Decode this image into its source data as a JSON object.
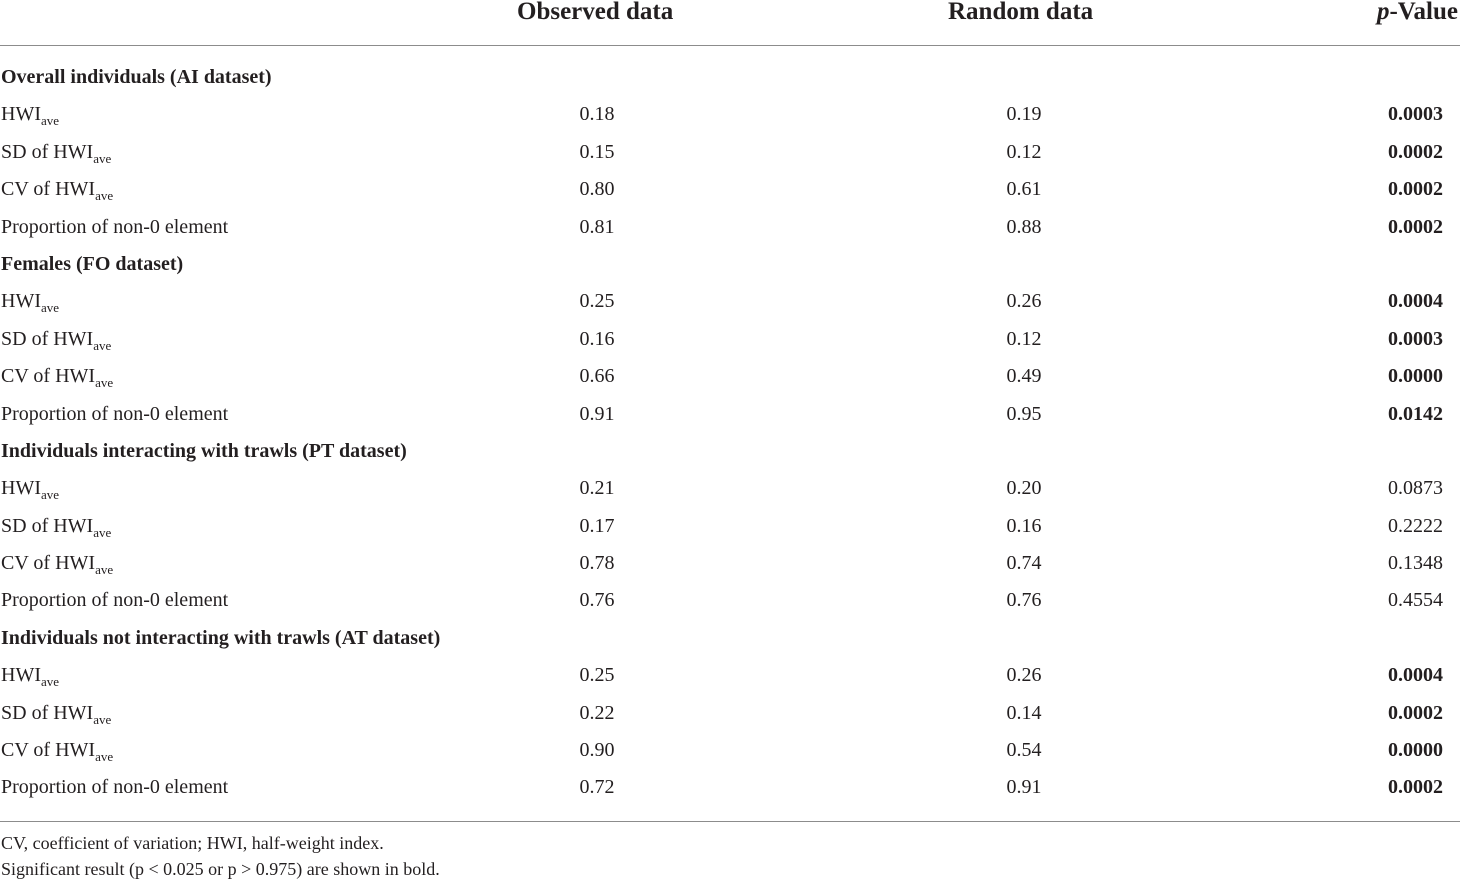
{
  "table": {
    "headers": {
      "observed": "Observed data",
      "random": "Random data",
      "pvalue_italic": "p",
      "pvalue_rest": "-Value"
    },
    "sections": [
      {
        "title": "Overall individuals (AI dataset)",
        "rows": [
          {
            "label_pre": "HWI",
            "label_sub": "ave",
            "observed": "0.18",
            "random": "0.19",
            "p_value": "0.0003",
            "bold": true
          },
          {
            "label_pre": "SD of HWI",
            "label_sub": "ave",
            "observed": "0.15",
            "random": "0.12",
            "p_value": "0.0002",
            "bold": true
          },
          {
            "label_pre": "CV of HWI",
            "label_sub": "ave",
            "observed": "0.80",
            "random": "0.61",
            "p_value": "0.0002",
            "bold": true
          },
          {
            "label_pre": "Proportion of non-0 element",
            "label_sub": "",
            "observed": "0.81",
            "random": "0.88",
            "p_value": "0.0002",
            "bold": true
          }
        ]
      },
      {
        "title": "Females (FO dataset)",
        "rows": [
          {
            "label_pre": "HWI",
            "label_sub": "ave",
            "observed": "0.25",
            "random": "0.26",
            "p_value": "0.0004",
            "bold": true
          },
          {
            "label_pre": "SD of HWI",
            "label_sub": "ave",
            "observed": "0.16",
            "random": "0.12",
            "p_value": "0.0003",
            "bold": true
          },
          {
            "label_pre": "CV of HWI",
            "label_sub": "ave",
            "observed": "0.66",
            "random": "0.49",
            "p_value": "0.0000",
            "bold": true
          },
          {
            "label_pre": "Proportion of non-0 element",
            "label_sub": "",
            "observed": "0.91",
            "random": "0.95",
            "p_value": "0.0142",
            "bold": true
          }
        ]
      },
      {
        "title": "Individuals interacting with trawls (PT dataset)",
        "rows": [
          {
            "label_pre": "HWI",
            "label_sub": "ave",
            "observed": "0.21",
            "random": "0.20",
            "p_value": "0.0873",
            "bold": false
          },
          {
            "label_pre": "SD of HWI",
            "label_sub": "ave",
            "observed": "0.17",
            "random": "0.16",
            "p_value": "0.2222",
            "bold": false
          },
          {
            "label_pre": "CV of HWI",
            "label_sub": "ave",
            "observed": "0.78",
            "random": "0.74",
            "p_value": "0.1348",
            "bold": false
          },
          {
            "label_pre": "Proportion of non-0 element",
            "label_sub": "",
            "observed": "0.76",
            "random": "0.76",
            "p_value": "0.4554",
            "bold": false
          }
        ]
      },
      {
        "title": "Individuals not interacting with trawls (AT dataset)",
        "rows": [
          {
            "label_pre": "HWI",
            "label_sub": "ave",
            "observed": "0.25",
            "random": "0.26",
            "p_value": "0.0004",
            "bold": true
          },
          {
            "label_pre": "SD of HWI",
            "label_sub": "ave",
            "observed": "0.22",
            "random": "0.14",
            "p_value": "0.0002",
            "bold": true
          },
          {
            "label_pre": "CV of HWI",
            "label_sub": "ave",
            "observed": "0.90",
            "random": "0.54",
            "p_value": "0.0000",
            "bold": true
          },
          {
            "label_pre": "Proportion of non-0 element",
            "label_sub": "",
            "observed": "0.72",
            "random": "0.91",
            "p_value": "0.0002",
            "bold": true
          }
        ]
      }
    ],
    "footnotes": [
      "CV, coefficient of variation; HWI, half-weight index.",
      "Significant result (p < 0.025 or p > 0.975) are shown in bold."
    ]
  }
}
